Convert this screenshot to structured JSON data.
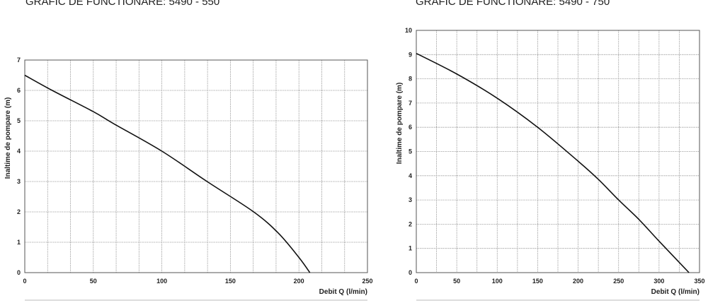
{
  "chart_data": [
    {
      "type": "line",
      "title": "GRAFIC DE FUNCTIONARE: 5490 - 550",
      "xlabel": "Debit  Q (l/min)",
      "ylabel": "Inaltime de pompare (m)",
      "xlim": [
        0,
        250
      ],
      "ylim": [
        0,
        7
      ],
      "xticks": [
        0,
        50,
        100,
        150,
        200,
        250
      ],
      "yticks": [
        0,
        1,
        2,
        3,
        4,
        5,
        6,
        7
      ],
      "x_grid_step": 16.667,
      "grid": true,
      "series": [
        {
          "x": [
            0,
            20,
            50,
            65,
            100,
            133,
            167,
            185,
            200,
            208
          ],
          "y": [
            6.5,
            6.0,
            5.3,
            4.9,
            4.0,
            3.0,
            2.0,
            1.3,
            0.5,
            0
          ]
        }
      ]
    },
    {
      "type": "line",
      "title": "GRAFIC DE FUNCTIONARE: 5490 - 750",
      "xlabel": "Debit  Q (l/min)",
      "ylabel": "Inaltime de pompare (m)",
      "xlim": [
        0,
        350
      ],
      "ylim": [
        0,
        10
      ],
      "xticks": [
        0,
        50,
        100,
        150,
        200,
        250,
        300,
        350
      ],
      "yticks": [
        0,
        1,
        2,
        3,
        4,
        5,
        6,
        7,
        8,
        9,
        10
      ],
      "x_grid_step": 25,
      "grid": true,
      "series": [
        {
          "x": [
            0,
            50,
            100,
            150,
            200,
            225,
            250,
            275,
            300,
            337
          ],
          "y": [
            9.05,
            8.2,
            7.2,
            6.0,
            4.6,
            3.85,
            3.0,
            2.2,
            1.3,
            0
          ]
        }
      ]
    }
  ]
}
